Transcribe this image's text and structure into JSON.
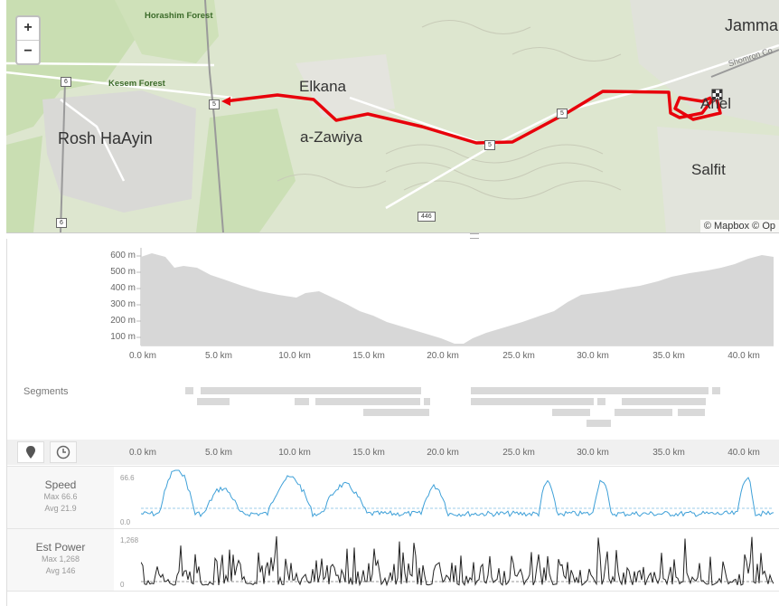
{
  "map": {
    "zoom_in": "+",
    "zoom_out": "−",
    "cities": [
      {
        "id": "jammala",
        "text": "Jamma"
      },
      {
        "id": "elkana",
        "text": "Elkana"
      },
      {
        "id": "rosh",
        "text": "Rosh HaAyin"
      },
      {
        "id": "zawiya",
        "text": "a-Zawiya"
      },
      {
        "id": "ariel",
        "text": "Ariel"
      },
      {
        "id": "salfit",
        "text": "Salfit"
      }
    ],
    "forests": [
      {
        "id": "horashim",
        "text": "Horashim Forest"
      },
      {
        "id": "kesem",
        "text": "Kesem Forest"
      }
    ],
    "road_labels": {
      "shomron": "Shomron Co"
    },
    "shields": [
      "6",
      "5",
      "5",
      "5",
      "6",
      "446"
    ],
    "attribution": "© Mapbox © Op"
  },
  "elevation": {
    "y_ticks": [
      "600 m",
      "500 m",
      "400 m",
      "300 m",
      "200 m",
      "100 m"
    ],
    "x_ticks": [
      "0.0 km",
      "5.0 km",
      "10.0 km",
      "15.0 km",
      "20.0 km",
      "25.0 km",
      "30.0 km",
      "35.0 km",
      "40.0 km"
    ]
  },
  "segments": {
    "label": "Segments"
  },
  "toolbar": {
    "x_ticks": [
      "0.0 km",
      "5.0 km",
      "10.0 km",
      "15.0 km",
      "20.0 km",
      "25.0 km",
      "30.0 km",
      "35.0 km",
      "40.0 km"
    ],
    "icons": [
      "map-marker-icon",
      "clock-icon"
    ]
  },
  "speed": {
    "name": "Speed",
    "max": "Max 66.6",
    "avg": "Avg 21.9",
    "top": "66.6",
    "bottom": "0.0"
  },
  "power": {
    "name": "Est Power",
    "max": "Max 1,268",
    "avg": "Avg 146",
    "top": "1,268",
    "bottom": "0"
  },
  "colors": {
    "route": "#e8000b",
    "speed": "#3ea0d8",
    "power": "#222222",
    "elevation_fill": "#d7d7d7"
  }
}
